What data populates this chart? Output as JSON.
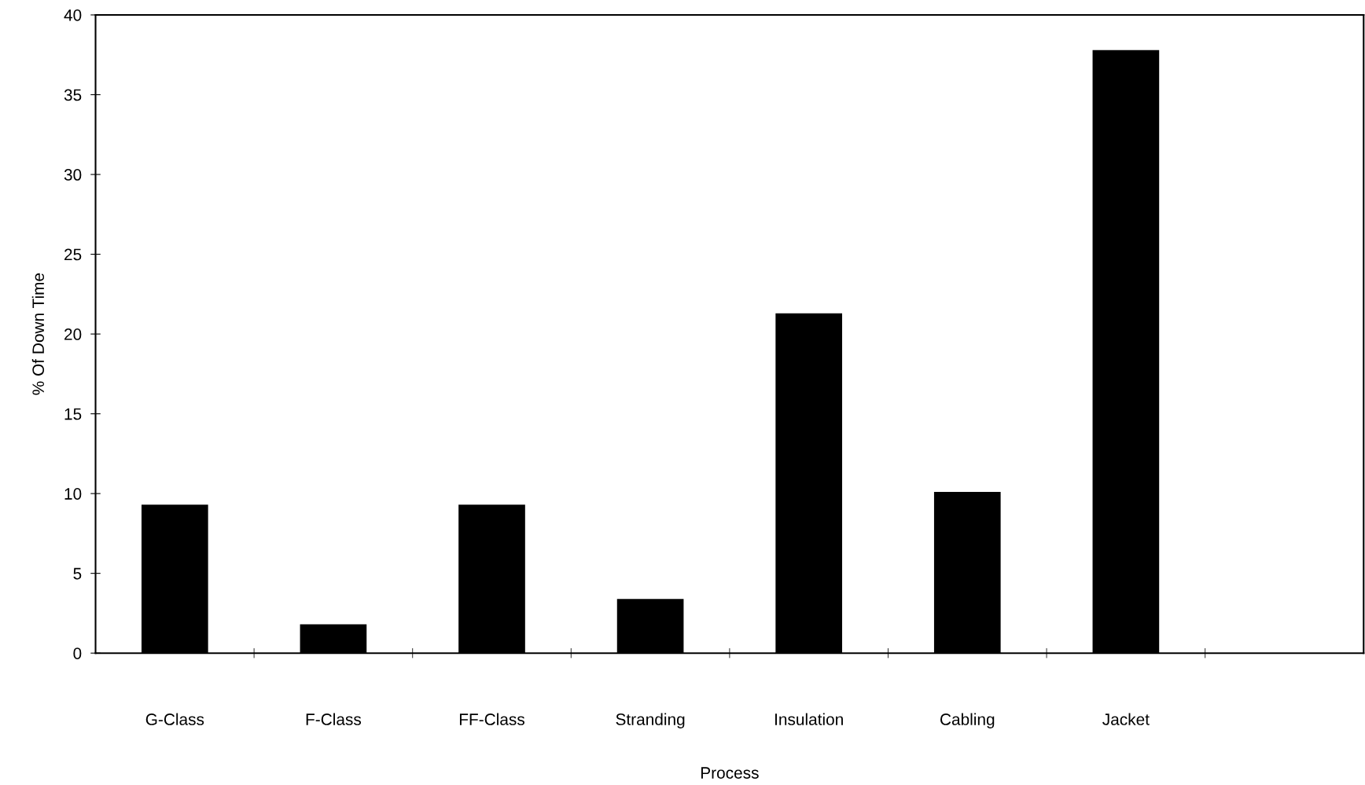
{
  "chart_data": {
    "type": "bar",
    "xlabel": "Process",
    "ylabel": "% Of Down Time",
    "categories": [
      "G-Class",
      "F-Class",
      "FF-Class",
      "Stranding",
      "Insulation",
      "Cabling",
      "Jacket",
      null
    ],
    "values": [
      9.3,
      1.8,
      9.3,
      3.4,
      21.3,
      10.1,
      37.8,
      null
    ],
    "color": "#000000",
    "ylim": [
      0,
      40
    ],
    "yticks": [
      0,
      5,
      10,
      15,
      20,
      25,
      30,
      35,
      40
    ],
    "grid": false,
    "legend": false
  }
}
